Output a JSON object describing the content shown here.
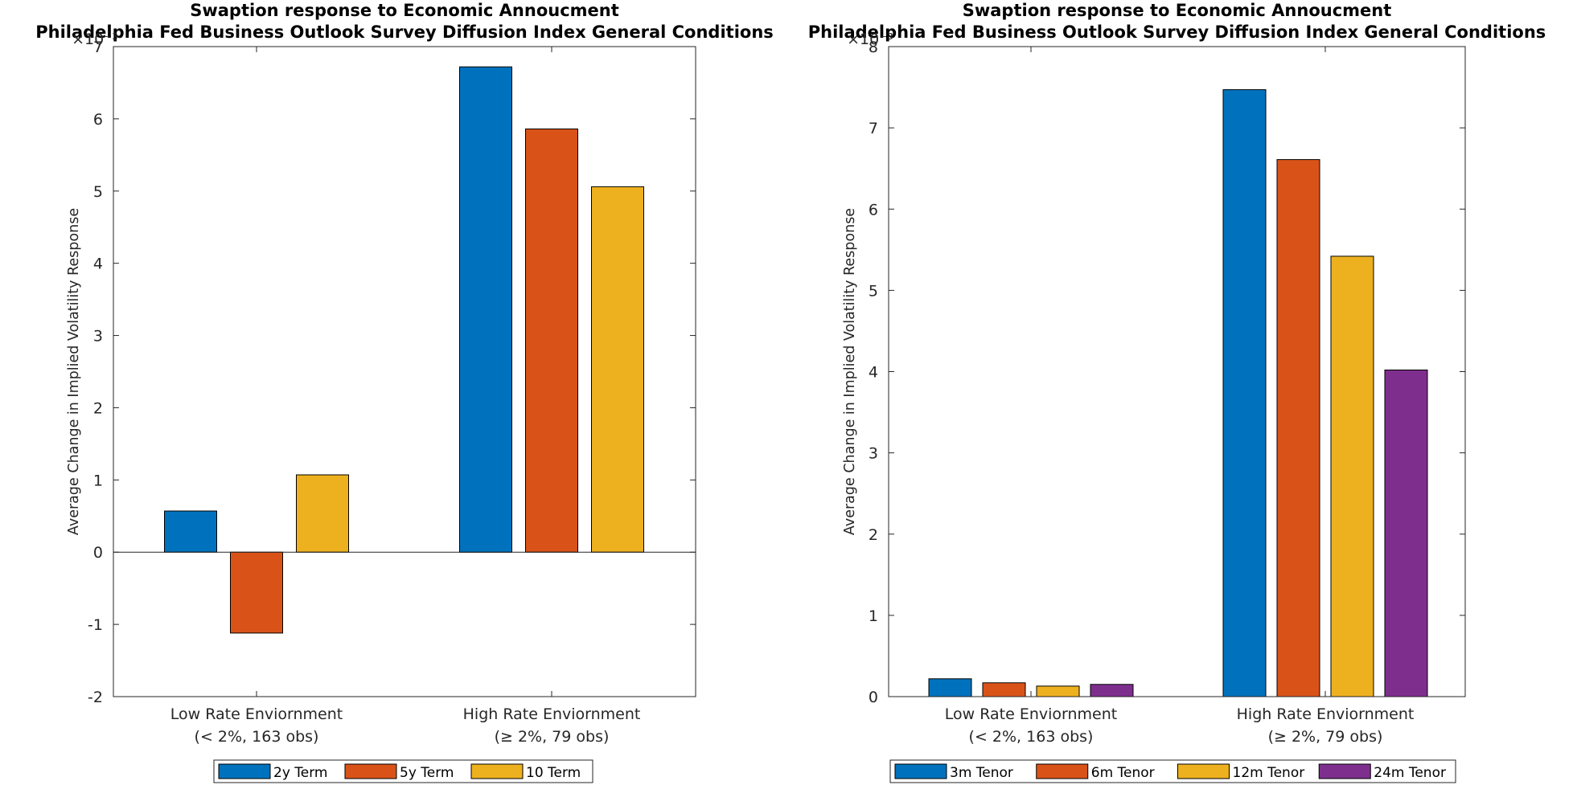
{
  "chart_data": [
    {
      "type": "bar",
      "title": "Swaption response to Economic Annoucment",
      "subtitle": "Philadelphia Fed Business Outlook Survey Diffusion Index General Conditions",
      "ylabel": "Average Change in Implied Volatility Response",
      "exponent_label": "×10⁻³",
      "ylim": [
        -2,
        7
      ],
      "yticks": [
        -2,
        -1,
        0,
        1,
        2,
        3,
        4,
        5,
        6,
        7
      ],
      "categories": [
        {
          "line1": "Low Rate Enviornment",
          "line2": "(< 2%, 163 obs)"
        },
        {
          "line1": "High Rate Enviornment",
          "line2": "(≥ 2%, 79 obs)"
        }
      ],
      "series": [
        {
          "name": "2y Term",
          "color": "#0072BD",
          "values": [
            0.57,
            6.72
          ]
        },
        {
          "name": "5y Term",
          "color": "#D95319",
          "values": [
            -1.12,
            5.86
          ]
        },
        {
          "name": "10 Term",
          "color": "#EDB120",
          "values": [
            1.07,
            5.06
          ]
        }
      ],
      "legend": "bottom-center",
      "grid": false
    },
    {
      "type": "bar",
      "title": "Swaption response to Economic Annoucment",
      "subtitle": "Philadelphia Fed Business Outlook Survey Diffusion Index General Conditions",
      "ylabel": "Average Change in Implied Volatility Response",
      "exponent_label": "×10⁻³",
      "ylim": [
        0,
        8
      ],
      "yticks": [
        0,
        1,
        2,
        3,
        4,
        5,
        6,
        7,
        8
      ],
      "categories": [
        {
          "line1": "Low Rate Enviornment",
          "line2": "(< 2%, 163 obs)"
        },
        {
          "line1": "High Rate Enviornment",
          "line2": "(≥ 2%, 79 obs)"
        }
      ],
      "series": [
        {
          "name": "3m Tenor",
          "color": "#0072BD",
          "values": [
            0.22,
            7.47
          ]
        },
        {
          "name": "6m Tenor",
          "color": "#D95319",
          "values": [
            0.17,
            6.61
          ]
        },
        {
          "name": "12m Tenor",
          "color": "#EDB120",
          "values": [
            0.13,
            5.42
          ]
        },
        {
          "name": "24m Tenor",
          "color": "#7E2F8E",
          "values": [
            0.15,
            4.02
          ]
        }
      ],
      "legend": "bottom-center",
      "grid": false
    }
  ]
}
